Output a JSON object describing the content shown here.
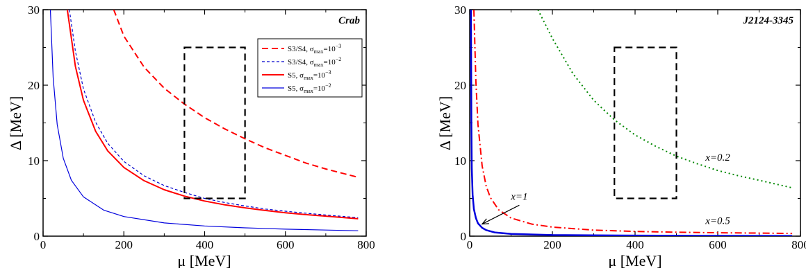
{
  "chart_data": [
    {
      "type": "line",
      "title": "Crab",
      "xlabel": "μ [MeV]",
      "ylabel": "Δ [MeV]",
      "xlim": [
        0,
        800
      ],
      "ylim": [
        0,
        30
      ],
      "xticks": [
        "0",
        "200",
        "400",
        "600",
        "800"
      ],
      "yticks": [
        "0",
        "10",
        "20",
        "30"
      ],
      "legend_position": "top-right",
      "series": [
        {
          "name": "S3/S4, σmax=10^-3",
          "legend": {
            "base": "S3/S4, σ",
            "sub": "max",
            "mid": "=10",
            "sup": "−3"
          },
          "color": "#ff0000",
          "style": "dashed-long",
          "width": 2,
          "x": [
            175,
            200,
            250,
            300,
            350,
            400,
            450,
            500,
            550,
            600,
            650,
            700,
            780
          ],
          "y": [
            30,
            26.5,
            22.4,
            19.6,
            17.5,
            15.7,
            14.2,
            12.9,
            11.7,
            10.7,
            9.7,
            8.9,
            7.8
          ]
        },
        {
          "name": "S3/S4, σmax=10^-2",
          "legend": {
            "base": "S3/S4, σ",
            "sub": "max",
            "mid": "=10",
            "sup": "−2"
          },
          "color": "#0000cc",
          "style": "dashed-short",
          "width": 1.2,
          "x": [
            65,
            80,
            100,
            130,
            160,
            200,
            250,
            300,
            350,
            400,
            450,
            500,
            550,
            600,
            650,
            700,
            780
          ],
          "y": [
            30,
            24.5,
            19.5,
            15.1,
            12.3,
            9.9,
            8.0,
            6.7,
            5.8,
            5.0,
            4.45,
            4.0,
            3.6,
            3.3,
            3.05,
            2.8,
            2.45
          ]
        },
        {
          "name": "S5, σmax=10^-3",
          "legend": {
            "base": "S5, σ",
            "sub": "max",
            "mid": "=10",
            "sup": "−3"
          },
          "color": "#ff0000",
          "style": "solid",
          "width": 2,
          "x": [
            60,
            80,
            100,
            130,
            160,
            200,
            250,
            300,
            350,
            400,
            450,
            500,
            550,
            600,
            650,
            700,
            780
          ],
          "y": [
            30,
            22.5,
            18.0,
            13.9,
            11.3,
            9.1,
            7.35,
            6.15,
            5.3,
            4.65,
            4.15,
            3.75,
            3.4,
            3.1,
            2.85,
            2.65,
            2.3
          ]
        },
        {
          "name": "S5, σmax=10^-2",
          "legend": {
            "base": "S5, σ",
            "sub": "max",
            "mid": "=10",
            "sup": "−2"
          },
          "color": "#0000dd",
          "style": "solid",
          "width": 1.2,
          "x": [
            18,
            25,
            35,
            50,
            70,
            100,
            150,
            200,
            300,
            400,
            500,
            600,
            700,
            780
          ],
          "y": [
            30,
            21.0,
            14.8,
            10.3,
            7.4,
            5.2,
            3.45,
            2.6,
            1.75,
            1.35,
            1.1,
            0.93,
            0.81,
            0.72
          ]
        }
      ],
      "box": {
        "x": [
          350,
          500
        ],
        "y": [
          5,
          25
        ]
      }
    },
    {
      "type": "line",
      "title": "J2124-3345",
      "xlabel": "μ [MeV]",
      "ylabel": "Δ [MeV]",
      "xlim": [
        0,
        800
      ],
      "ylim": [
        0,
        30
      ],
      "xticks": [
        "0",
        "200",
        "400",
        "600",
        "800"
      ],
      "yticks": [
        "0",
        "10",
        "20",
        "30"
      ],
      "series": [
        {
          "name": "x=0.2",
          "color": "#008800",
          "style": "dotted",
          "width": 2,
          "x": [
            165,
            200,
            250,
            300,
            350,
            400,
            450,
            500,
            550,
            600,
            650,
            700,
            780
          ],
          "y": [
            30,
            26.2,
            21.5,
            18.0,
            15.4,
            13.4,
            11.9,
            10.6,
            9.6,
            8.7,
            8.0,
            7.4,
            6.4
          ]
        },
        {
          "name": "x=0.5",
          "color": "#ff0000",
          "style": "dashdot",
          "width": 2,
          "x": [
            10,
            15,
            20,
            30,
            40,
            50,
            70,
            100,
            150,
            200,
            300,
            400,
            500,
            600,
            700,
            780
          ],
          "y": [
            30,
            20.5,
            14.8,
            9.3,
            6.6,
            5.1,
            3.5,
            2.4,
            1.6,
            1.2,
            0.8,
            0.62,
            0.52,
            0.45,
            0.4,
            0.36
          ]
        },
        {
          "name": "x=1",
          "color": "#0000dd",
          "style": "solid",
          "width": 2.5,
          "x": [
            3,
            4,
            5,
            7,
            10,
            15,
            20,
            30,
            40,
            60,
            100,
            200,
            400,
            600,
            780
          ],
          "y": [
            30,
            15,
            9,
            5.5,
            3.6,
            2.4,
            1.7,
            1.1,
            0.8,
            0.5,
            0.3,
            0.15,
            0.08,
            0.05,
            0.04
          ]
        }
      ],
      "box": {
        "x": [
          350,
          500
        ],
        "y": [
          5,
          25
        ]
      },
      "annotations": [
        {
          "text": "x=0.2",
          "x": 600,
          "y": 10
        },
        {
          "text": "x=0.5",
          "x": 600,
          "y": 1.6
        },
        {
          "text": "x=1",
          "x": 120,
          "y": 4.8
        }
      ],
      "arrow": {
        "from": [
          120,
          4.1
        ],
        "to": [
          30,
          1.6
        ]
      }
    }
  ]
}
